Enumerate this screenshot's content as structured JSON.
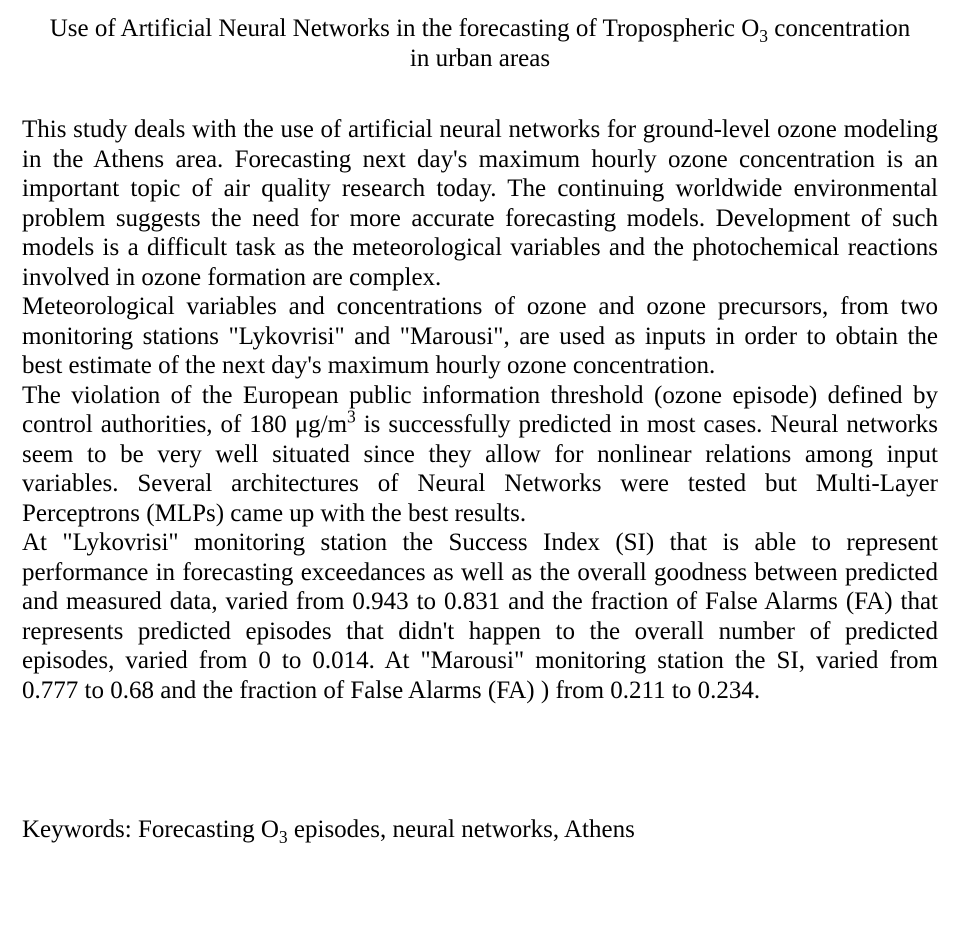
{
  "document": {
    "background_color": "#ffffff",
    "text_color": "#000000",
    "font_family": "Times New Roman",
    "base_font_size_pt": 19,
    "title": {
      "line1_pre": "Use of Artificial Neural Networks in the forecasting of Tropospheric O",
      "line1_sub": "3",
      "line1_post": " concentration",
      "line2": "in urban areas"
    },
    "body": {
      "p1": "This study deals with the use of artificial neural networks for ground-level ozone modeling in the Athens area. Forecasting next day's maximum hourly ozone concentration is an important topic of air quality research today. The continuing worldwide environmental problem suggests the need for more accurate forecasting models. Development of such models is a difficult task as the meteorological variables and the photochemical reactions involved in ozone formation are complex.",
      "p2": "Meteorological variables and concentrations of ozone and ozone precursors, from two monitoring stations \"Lykovrisi\" and \"Marousi\", are used as inputs in order to obtain the best estimate of the next day's maximum hourly ozone concentration.",
      "p3_pre": "The violation of the European public information threshold (ozone episode) defined by control authorities, of 180 μg/m",
      "p3_sup": "3",
      "p3_post": " is successfully predicted in most cases. Neural networks seem to be very well situated since they allow for nonlinear relations among input variables. Several architectures of Neural Networks were tested but Multi-Layer Perceptrons (MLPs) came up with the best results.",
      "p4": "At \"Lykovrisi\" monitoring station the Success Index (SI) that is able to represent performance in forecasting exceedances as well as the overall goodness between predicted and measured data, varied from 0.943 to 0.831 and the fraction of False Alarms (FA) that represents predicted episodes that didn't happen to the overall number of predicted episodes, varied from 0 to 0.014. At \"Marousi\" monitoring station the SI, varied from 0.777 to 0.68 and the fraction of False Alarms (FA) ) from 0.211 to 0.234."
    },
    "keywords": {
      "pre": "Keywords: Forecasting O",
      "sub": "3",
      "post": " episodes, neural networks, Athens"
    }
  }
}
